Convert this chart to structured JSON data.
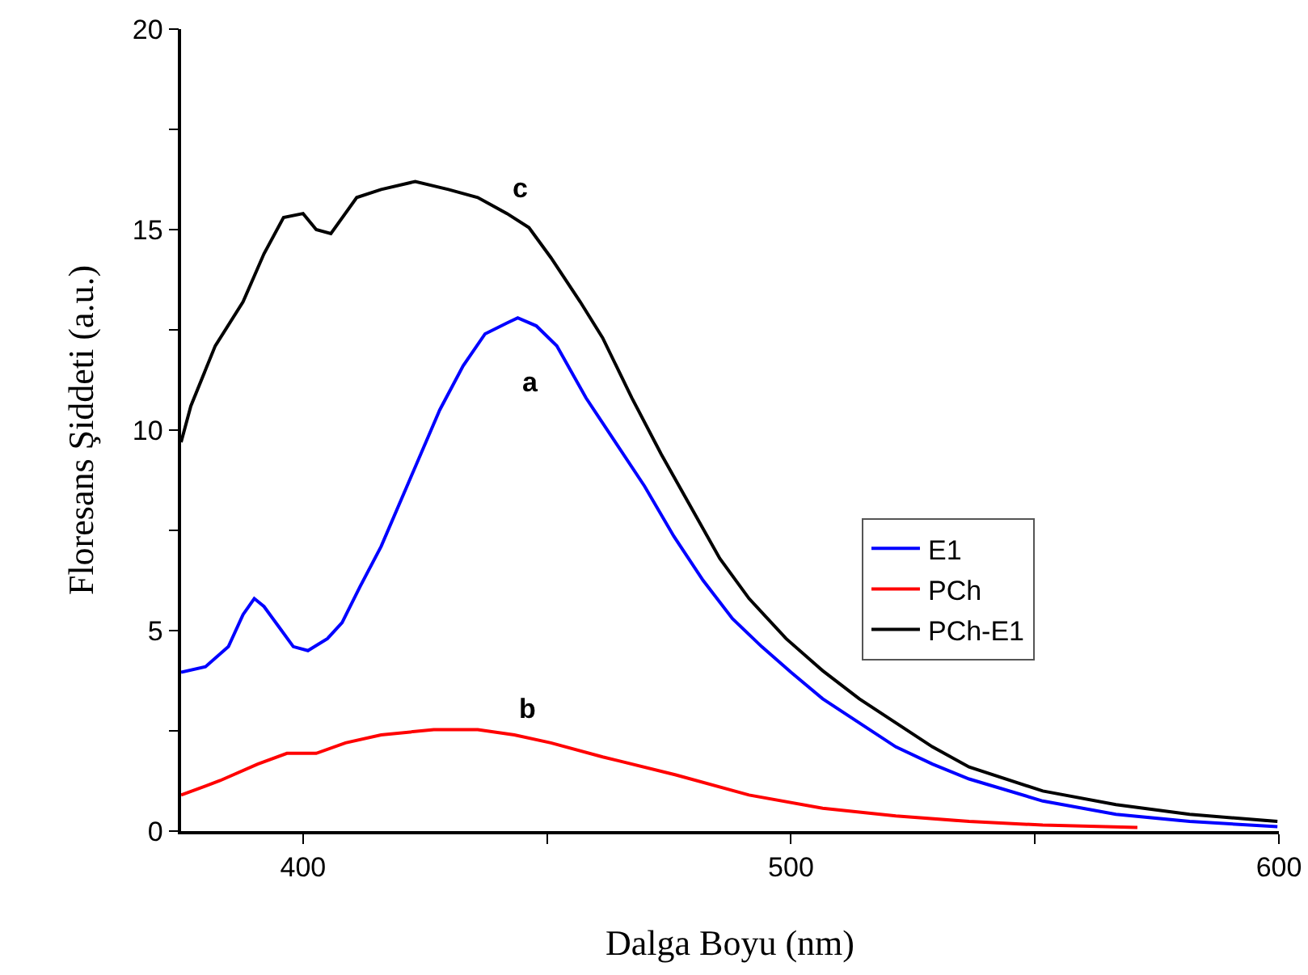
{
  "chart_data": {
    "type": "line",
    "xlabel": "Dalga Boyu (nm)",
    "ylabel": "Floresans Şiddeti (a.u.)",
    "xlim": [
      375,
      600
    ],
    "xticks": [
      400,
      {
        "value": 450,
        "label": null
      },
      500,
      {
        "value": 550,
        "label": null
      },
      600
    ],
    "ylim": [
      0,
      20
    ],
    "yticks": [
      0,
      {
        "value": 2.5,
        "label": null
      },
      5,
      {
        "value": 7.5,
        "label": null
      },
      10,
      {
        "value": 12.5,
        "label": null
      },
      15,
      {
        "value": 17.5,
        "label": null
      },
      20
    ],
    "grid": false,
    "legend": "right",
    "marker": "none",
    "line_style": "solid",
    "series": [
      {
        "name": "E1",
        "color": "#0000ff",
        "x": [
          375,
          380,
          384.7,
          387.7,
          390,
          392,
          395,
          398,
          401,
          405,
          408,
          411.7,
          416,
          422,
          428,
          432.8,
          437.3,
          441.8,
          444,
          447.8,
          452,
          458,
          464,
          470,
          476,
          482,
          488,
          494,
          500,
          506.5,
          514,
          521.5,
          529,
          536.5,
          551.6,
          566.6,
          581.7,
          599.7
        ],
        "values": [
          3.96,
          4.1,
          4.6,
          5.4,
          5.8,
          5.6,
          5.1,
          4.6,
          4.5,
          4.8,
          5.2,
          6.1,
          7.1,
          8.8,
          10.5,
          11.6,
          12.4,
          12.67,
          12.8,
          12.6,
          12.1,
          10.8,
          9.7,
          8.6,
          7.35,
          6.25,
          5.3,
          4.6,
          3.96,
          3.3,
          2.7,
          2.1,
          1.67,
          1.3,
          0.75,
          0.42,
          0.24,
          0.11
        ]
      },
      {
        "name": "PCh",
        "color": "#ff0000",
        "x": [
          375,
          383,
          390.7,
          396.7,
          402.7,
          408.7,
          416,
          426.8,
          435.8,
          443.3,
          450.8,
          461.4,
          476.4,
          491.4,
          506.5,
          521.5,
          536.5,
          551.6,
          571
        ],
        "values": [
          0.9,
          1.26,
          1.67,
          1.94,
          1.94,
          2.2,
          2.4,
          2.53,
          2.53,
          2.4,
          2.2,
          1.85,
          1.4,
          0.9,
          0.57,
          0.38,
          0.24,
          0.15,
          0.09
        ]
      },
      {
        "name": "PCh-E1",
        "color": "#000000",
        "x": [
          375,
          377,
          382,
          387.7,
          392,
          396,
          400,
          402.7,
          405.7,
          411,
          416,
          423,
          429.8,
          435.8,
          441.8,
          446.3,
          450.8,
          456.8,
          461.4,
          467.4,
          473.4,
          479.4,
          485.4,
          491.4,
          499,
          506.5,
          514,
          521.5,
          529,
          536.5,
          551.6,
          566.6,
          581.7,
          599.7
        ],
        "values": [
          9.7,
          10.6,
          12.1,
          13.2,
          14.4,
          15.3,
          15.4,
          15.0,
          14.9,
          15.8,
          16.0,
          16.2,
          16.0,
          15.8,
          15.4,
          15.05,
          14.3,
          13.2,
          12.3,
          10.8,
          9.4,
          8.1,
          6.8,
          5.8,
          4.8,
          4.0,
          3.3,
          2.7,
          2.1,
          1.6,
          1.0,
          0.66,
          0.42,
          0.24
        ]
      }
    ],
    "annotations": [
      {
        "text": "c",
        "x": 441.8,
        "y": 15.4
      },
      {
        "text": "a",
        "x": 444,
        "y": 12.8
      },
      {
        "text": "b",
        "x": 443.3,
        "y": 2.4
      }
    ]
  }
}
